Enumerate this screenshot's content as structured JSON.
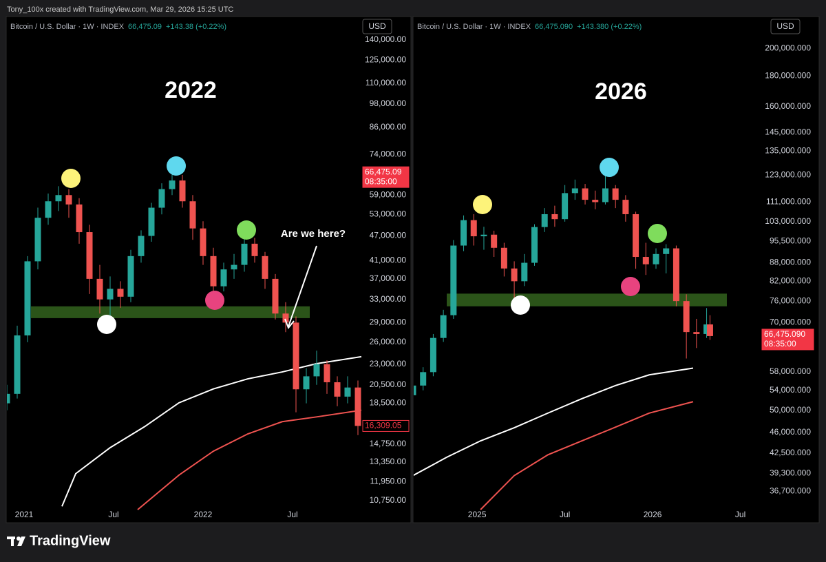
{
  "header": "Tony_100x created with TradingView.com, Mar 29, 2026 15:25 UTC",
  "brand": "TradingView",
  "chart_data": [
    {
      "type": "candlestick",
      "symbol": "Bitcoin / U.S. Dollar · 1W · INDEX",
      "last": "66,475.09",
      "change": "+143.38 (+0.22%)",
      "currency": "USD",
      "title": "2022",
      "annotation": "Are we here?",
      "log_scale": true,
      "up_color": "#26a69a",
      "down_color": "#ef5350",
      "xlim": [
        0,
        103
      ],
      "xticks": [
        {
          "value": 5,
          "label": "2021"
        },
        {
          "value": 31,
          "label": "Jul"
        },
        {
          "value": 57,
          "label": "2022"
        },
        {
          "value": 83,
          "label": "Jul"
        }
      ],
      "ylim": [
        10230,
        158900
      ],
      "yticks": [
        {
          "value": 140000,
          "label": "140,000.00"
        },
        {
          "value": 125000,
          "label": "125,000.00"
        },
        {
          "value": 110000,
          "label": "110,000.00"
        },
        {
          "value": 98000,
          "label": "98,000.00"
        },
        {
          "value": 86000,
          "label": "86,000.00"
        },
        {
          "value": 74000,
          "label": "74,000.00"
        },
        {
          "value": 59000,
          "label": "59,000.00"
        },
        {
          "value": 53000,
          "label": "53,000.00"
        },
        {
          "value": 47000,
          "label": "47,000.00"
        },
        {
          "value": 41000,
          "label": "41,000.00"
        },
        {
          "value": 37000,
          "label": "37,000.00"
        },
        {
          "value": 33000,
          "label": "33,000.00"
        },
        {
          "value": 29000,
          "label": "29,000.00"
        },
        {
          "value": 26000,
          "label": "26,000.00"
        },
        {
          "value": 23000,
          "label": "23,000.00"
        },
        {
          "value": 20500,
          "label": "20,500.00"
        },
        {
          "value": 18500,
          "label": "18,500.00"
        },
        {
          "value": 14750,
          "label": "14,750.00"
        },
        {
          "value": 13350,
          "label": "13,350.00"
        },
        {
          "value": 11950,
          "label": "11,950.00"
        },
        {
          "value": 10750,
          "label": "10,750.00"
        }
      ],
      "x": [
        0,
        3,
        6,
        9,
        12,
        15,
        18,
        21,
        24,
        27,
        30,
        33,
        36,
        39,
        42,
        45,
        48,
        51,
        54,
        57,
        60,
        63,
        66,
        69,
        72,
        75,
        78,
        81,
        84,
        87,
        90,
        93,
        96,
        99,
        102
      ],
      "ohlc": [
        [
          18500,
          20500,
          17800,
          19500
        ],
        [
          19500,
          28500,
          19000,
          27000
        ],
        [
          27000,
          42000,
          26000,
          40800
        ],
        [
          40800,
          55000,
          39000,
          52000
        ],
        [
          52000,
          59500,
          50000,
          57000
        ],
        [
          57000,
          62000,
          54000,
          59000
        ],
        [
          59000,
          61000,
          52000,
          56000
        ],
        [
          56000,
          58000,
          45000,
          48000
        ],
        [
          48000,
          50000,
          34000,
          37000
        ],
        [
          37000,
          40000,
          30500,
          33000
        ],
        [
          33000,
          37500,
          29500,
          35000
        ],
        [
          35000,
          36500,
          31500,
          33500
        ],
        [
          33500,
          43500,
          32500,
          42000
        ],
        [
          42000,
          48500,
          40500,
          47000
        ],
        [
          47000,
          56500,
          45500,
          55000
        ],
        [
          55000,
          63000,
          53000,
          61000
        ],
        [
          61000,
          67500,
          59000,
          64000
        ],
        [
          64000,
          66000,
          55000,
          57000
        ],
        [
          57000,
          59000,
          46000,
          49000
        ],
        [
          49000,
          51000,
          40000,
          42000
        ],
        [
          42000,
          44000,
          33500,
          35500
        ],
        [
          35500,
          40500,
          34500,
          39000
        ],
        [
          39000,
          42500,
          37000,
          40000
        ],
        [
          40000,
          47500,
          38500,
          45000
        ],
        [
          45000,
          46500,
          40500,
          42000
        ],
        [
          42000,
          43000,
          35000,
          37000
        ],
        [
          37000,
          38000,
          29500,
          30500
        ],
        [
          30500,
          32500,
          27500,
          29000
        ],
        [
          29000,
          30000,
          17600,
          20000
        ],
        [
          20000,
          22500,
          18500,
          21500
        ],
        [
          21500,
          24800,
          20500,
          23000
        ],
        [
          23000,
          23500,
          19500,
          20800
        ],
        [
          20800,
          21500,
          18200,
          19200
        ],
        [
          19200,
          21500,
          18500,
          20200
        ],
        [
          20200,
          21000,
          15500,
          16309
        ]
      ],
      "ma": [
        {
          "color": "#ffffff",
          "x": [
            16,
            20,
            30,
            40,
            50,
            60,
            70,
            80,
            90,
            103
          ],
          "values": [
            10420,
            12500,
            14450,
            16240,
            18550,
            20040,
            21200,
            22030,
            23070,
            23990
          ]
        },
        {
          "color": "#ef5350",
          "x": [
            38,
            50,
            60,
            70,
            80,
            90,
            103
          ],
          "values": [
            10230,
            12400,
            14170,
            15600,
            16700,
            17150,
            17800
          ]
        }
      ],
      "zone": {
        "color": "#2b5419",
        "low": 29730,
        "high": 31750,
        "x": [
          7,
          88
        ]
      },
      "price_tags": [
        {
          "value": 66475.09,
          "label": "66,475.09",
          "sub": "08:35:00",
          "style": "fill"
        },
        {
          "value": 16309.05,
          "label": "16,309.05",
          "style": "outline"
        }
      ]
    },
    {
      "type": "candlestick",
      "symbol": "Bitcoin / U.S. Dollar · 1W · INDEX",
      "last": "66,475.090",
      "change": "+143.380 (+0.22%)",
      "currency": "USD",
      "title": "2026",
      "log_scale": true,
      "up_color": "#26a69a",
      "down_color": "#ef5350",
      "xlim": [
        0,
        103
      ],
      "xticks": [
        {
          "value": 19,
          "label": "2025"
        },
        {
          "value": 45,
          "label": "Jul"
        },
        {
          "value": 71,
          "label": "2026"
        },
        {
          "value": 97,
          "label": "Jul"
        }
      ],
      "ylim": [
        34200,
        225300
      ],
      "yticks": [
        {
          "value": 200000,
          "label": "200,000.000"
        },
        {
          "value": 180000,
          "label": "180,000.000"
        },
        {
          "value": 160000,
          "label": "160,000.000"
        },
        {
          "value": 145000,
          "label": "145,000.000"
        },
        {
          "value": 135000,
          "label": "135,000.000"
        },
        {
          "value": 123000,
          "label": "123,000.000"
        },
        {
          "value": 111000,
          "label": "111,000.000"
        },
        {
          "value": 103000,
          "label": "103,000.000"
        },
        {
          "value": 95500,
          "label": "95,500.000"
        },
        {
          "value": 88000,
          "label": "88,000.000"
        },
        {
          "value": 82000,
          "label": "82,000.000"
        },
        {
          "value": 76000,
          "label": "76,000.000"
        },
        {
          "value": 70000,
          "label": "70,000.000"
        },
        {
          "value": 58000,
          "label": "58,000.000"
        },
        {
          "value": 54000,
          "label": "54,000.000"
        },
        {
          "value": 50000,
          "label": "50,000.000"
        },
        {
          "value": 46000,
          "label": "46,000.000"
        },
        {
          "value": 42500,
          "label": "42,500.000"
        },
        {
          "value": 39300,
          "label": "39,300.000"
        },
        {
          "value": 36700,
          "label": "36,700.000"
        }
      ],
      "x": [
        0,
        3,
        6,
        9,
        12,
        15,
        18,
        21,
        24,
        27,
        30,
        33,
        36,
        39,
        42,
        45,
        48,
        51,
        54,
        57,
        60,
        63,
        66,
        69,
        72,
        75,
        78,
        81,
        84,
        87,
        88
      ],
      "ohlc": [
        [
          53000,
          56500,
          52000,
          55000
        ],
        [
          55000,
          59000,
          54000,
          57900
        ],
        [
          57900,
          67000,
          57000,
          66000
        ],
        [
          66000,
          73500,
          65000,
          72000
        ],
        [
          72000,
          96000,
          71000,
          94000
        ],
        [
          94000,
          105500,
          92000,
          103600
        ],
        [
          103600,
          106000,
          94000,
          97400
        ],
        [
          97400,
          101000,
          92500,
          98000
        ],
        [
          98000,
          99500,
          90000,
          93200
        ],
        [
          93200,
          95000,
          83500,
          86100
        ],
        [
          86100,
          88500,
          76500,
          82000
        ],
        [
          82000,
          91000,
          80500,
          88000
        ],
        [
          88000,
          102000,
          87000,
          100900
        ],
        [
          100900,
          108500,
          99000,
          106000
        ],
        [
          106000,
          109500,
          101000,
          104000
        ],
        [
          104000,
          118500,
          103000,
          114900
        ],
        [
          114900,
          121000,
          112000,
          117000
        ],
        [
          117000,
          119000,
          110000,
          112000
        ],
        [
          112000,
          116000,
          108000,
          111000
        ],
        [
          111000,
          124500,
          110000,
          117000
        ],
        [
          117000,
          118500,
          108500,
          112000
        ],
        [
          112000,
          114000,
          103000,
          106000
        ],
        [
          106000,
          107000,
          86000,
          90000
        ],
        [
          90000,
          95000,
          84000,
          87500
        ],
        [
          87500,
          93000,
          86000,
          91000
        ],
        [
          91000,
          94500,
          84500,
          93000
        ],
        [
          93000,
          94000,
          74500,
          76000
        ],
        [
          76000,
          78000,
          61000,
          67500
        ],
        [
          67500,
          71000,
          63500,
          67000
        ],
        [
          67000,
          74000,
          66000,
          69500
        ],
        [
          69500,
          72000,
          65500,
          66475.09
        ]
      ],
      "ma": [
        {
          "color": "#ffffff",
          "x": [
            0,
            10,
            20,
            30,
            40,
            50,
            60,
            70,
            83
          ],
          "values": [
            38970,
            41800,
            44500,
            46800,
            49500,
            52300,
            55000,
            57300,
            58800
          ]
        },
        {
          "color": "#ef5350",
          "x": [
            20,
            30,
            40,
            50,
            60,
            70,
            83
          ],
          "values": [
            34200,
            38970,
            42200,
            44500,
            46900,
            49500,
            51700
          ]
        }
      ],
      "zone": {
        "color": "#2b5419",
        "low": 74500,
        "high": 78200,
        "x": [
          10,
          93
        ]
      },
      "price_tags": [
        {
          "value": 66475.09,
          "label": "66,475.090",
          "sub": "08:35:00",
          "style": "fill"
        }
      ]
    }
  ]
}
